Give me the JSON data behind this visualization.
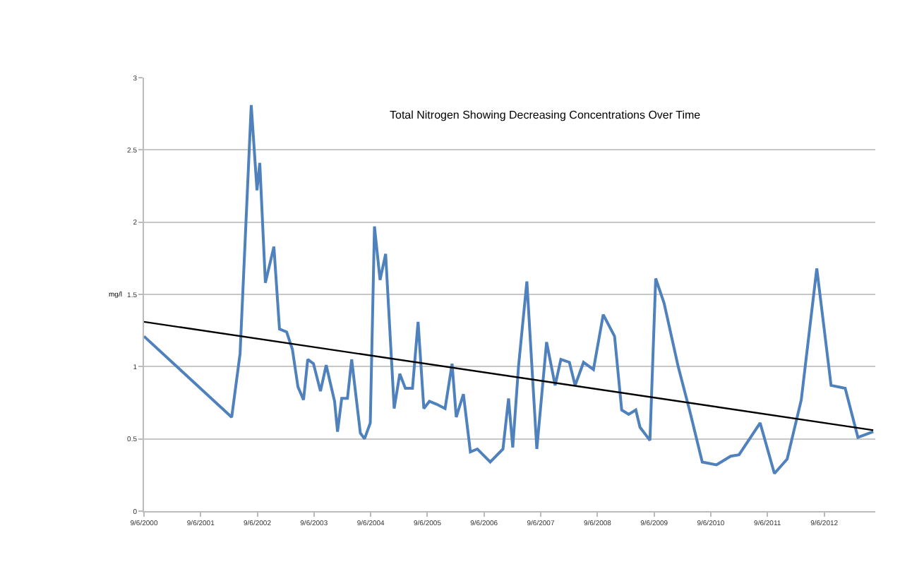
{
  "chart_data": {
    "type": "line",
    "title": "Total Nitrogen Showing Decreasing Concentrations Over Time",
    "ylabel": "mg/l",
    "xlim": [
      "2000-09-06",
      "2013-08-01"
    ],
    "xticks": [
      {
        "value": "2000-09-06",
        "label": "9/6/2000"
      },
      {
        "value": "2001-09-06",
        "label": "9/6/2001"
      },
      {
        "value": "2002-09-06",
        "label": "9/6/2002"
      },
      {
        "value": "2003-09-06",
        "label": "9/6/2003"
      },
      {
        "value": "2004-09-06",
        "label": "9/6/2004"
      },
      {
        "value": "2005-09-06",
        "label": "9/6/2005"
      },
      {
        "value": "2006-09-06",
        "label": "9/6/2006"
      },
      {
        "value": "2007-09-06",
        "label": "9/6/2007"
      },
      {
        "value": "2008-09-06",
        "label": "9/6/2008"
      },
      {
        "value": "2009-09-06",
        "label": "9/6/2009"
      },
      {
        "value": "2010-09-06",
        "label": "9/6/2010"
      },
      {
        "value": "2011-09-06",
        "label": "9/6/2011"
      },
      {
        "value": "2012-09-06",
        "label": "9/6/2012"
      }
    ],
    "ylim": [
      0,
      3
    ],
    "yticks": [
      0,
      0.5,
      1,
      1.5,
      2,
      2.5,
      3
    ],
    "grid": "y",
    "marker": "none",
    "series": [
      {
        "color": "#4f81bd",
        "x": [
          "2000-09-06",
          "2002-03-25",
          "2002-05-18",
          "2002-07-29",
          "2002-09-04",
          "2002-09-22",
          "2002-10-28",
          "2002-12-22",
          "2003-01-27",
          "2003-03-14",
          "2003-04-20",
          "2003-05-26",
          "2003-07-01",
          "2003-07-28",
          "2003-09-03",
          "2003-10-18",
          "2003-11-24",
          "2004-01-17",
          "2004-02-05",
          "2004-03-03",
          "2004-04-09",
          "2004-05-06",
          "2004-07-01",
          "2004-07-28",
          "2004-09-03",
          "2004-09-30",
          "2004-11-05",
          "2004-12-11",
          "2005-02-04",
          "2005-03-12",
          "2005-04-17",
          "2005-06-02",
          "2005-07-08",
          "2005-08-14",
          "2005-09-19",
          "2005-11-04",
          "2005-12-29",
          "2006-02-12",
          "2006-03-11",
          "2006-04-26",
          "2006-06-10",
          "2006-07-25",
          "2006-10-16",
          "2007-01-06",
          "2007-02-11",
          "2007-03-10",
          "2007-04-16",
          "2007-06-09",
          "2007-08-12",
          "2007-10-14",
          "2007-12-08",
          "2008-01-14",
          "2008-03-09",
          "2008-04-15",
          "2008-06-08",
          "2008-08-11",
          "2008-10-13",
          "2008-12-25",
          "2009-02-09",
          "2009-03-26",
          "2009-05-11",
          "2009-06-07",
          "2009-08-10",
          "2009-09-16",
          "2009-11-09",
          "2010-02-08",
          "2010-04-22",
          "2010-07-13",
          "2010-10-12",
          "2011-01-12",
          "2011-03-07",
          "2011-07-21",
          "2011-10-21",
          "2012-01-11",
          "2012-04-11",
          "2012-07-20",
          "2012-10-20",
          "2013-01-19",
          "2013-04-11",
          "2013-07-19"
        ],
        "values": [
          1.21,
          0.65,
          1.09,
          2.81,
          2.22,
          2.41,
          1.58,
          1.83,
          1.26,
          1.24,
          1.12,
          0.86,
          0.77,
          1.05,
          1.02,
          0.83,
          1.01,
          0.76,
          0.55,
          0.78,
          0.78,
          1.05,
          0.54,
          0.5,
          0.61,
          1.97,
          1.6,
          1.78,
          0.71,
          0.95,
          0.85,
          0.85,
          1.31,
          0.71,
          0.76,
          0.74,
          0.71,
          1.02,
          0.65,
          0.81,
          0.41,
          0.43,
          0.34,
          0.43,
          0.78,
          0.44,
          1.0,
          1.59,
          0.43,
          1.17,
          0.87,
          1.05,
          1.03,
          0.87,
          1.03,
          0.98,
          1.36,
          1.21,
          0.7,
          0.67,
          0.7,
          0.58,
          0.49,
          1.61,
          1.44,
          1.0,
          0.7,
          0.34,
          0.32,
          0.38,
          0.39,
          0.61,
          0.26,
          0.36,
          0.77,
          1.68,
          0.87,
          0.85,
          0.51,
          0.55
        ]
      },
      {
        "color": "#000000",
        "x": [
          "2000-09-06",
          "2013-07-19"
        ],
        "values": [
          1.31,
          0.56
        ]
      }
    ]
  }
}
